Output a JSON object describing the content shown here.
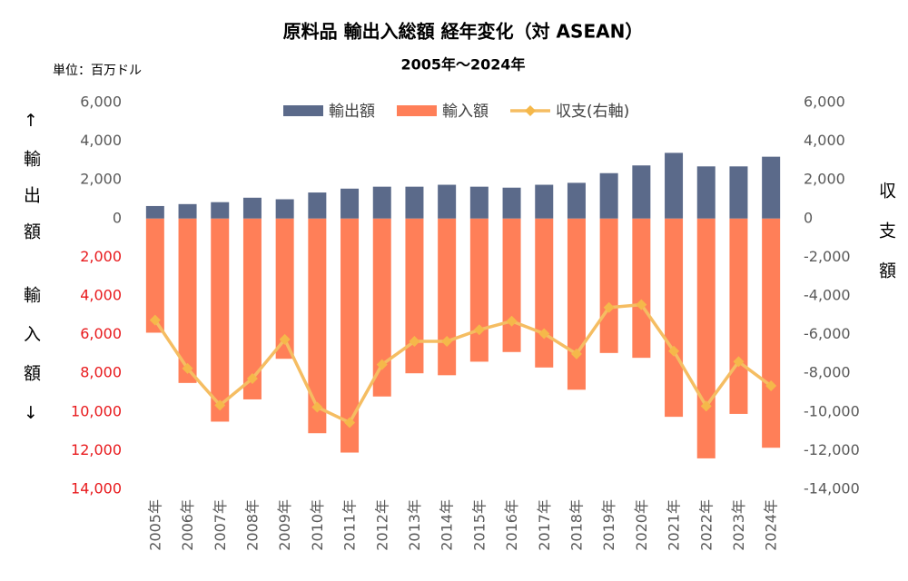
{
  "chart_data": {
    "type": "bar_line",
    "title": "原料品 輸出入総額 経年変化（対 ASEAN）",
    "subtitle": "2005年～2024年",
    "unit_label": "単位：百万ドル",
    "y_label_upper": "↑輸出額",
    "y_label_lower": "輸入額↓",
    "y2_label": "収支額",
    "categories": [
      "2005年",
      "2006年",
      "2007年",
      "2008年",
      "2009年",
      "2010年",
      "2011年",
      "2012年",
      "2013年",
      "2014年",
      "2015年",
      "2016年",
      "2017年",
      "2018年",
      "2019年",
      "2020年",
      "2021年",
      "2022年",
      "2023年",
      "2024年"
    ],
    "series": [
      {
        "name": "輸出額",
        "type": "bar",
        "color": "#5b6a8a",
        "values": [
          650,
          750,
          850,
          1080,
          1000,
          1350,
          1550,
          1650,
          1650,
          1750,
          1650,
          1600,
          1750,
          1850,
          2350,
          2750,
          3400,
          2700,
          2700,
          3200
        ]
      },
      {
        "name": "輸入額",
        "type": "bar",
        "color": "#ff7f58",
        "values": [
          -5900,
          -8500,
          -10500,
          -9350,
          -7250,
          -11100,
          -12100,
          -9200,
          -8000,
          -8100,
          -7400,
          -6900,
          -7700,
          -8850,
          -6950,
          -7200,
          -10250,
          -12400,
          -10100,
          -11850
        ]
      },
      {
        "name": "収支(右軸)",
        "type": "line",
        "axis": "y2",
        "color": "#f5bd62",
        "values": [
          -5250,
          -7750,
          -9650,
          -8270,
          -6250,
          -9750,
          -10550,
          -7550,
          -6350,
          -6350,
          -5750,
          -5300,
          -5950,
          -7000,
          -4600,
          -4450,
          -6850,
          -9700,
          -7400,
          -8650
        ]
      }
    ],
    "ylim": [
      -14000,
      6000
    ],
    "yticks": [
      {
        "value": 6000,
        "label": "6,000"
      },
      {
        "value": 4000,
        "label": "4,000"
      },
      {
        "value": 2000,
        "label": "2,000"
      },
      0,
      {
        "value": -2000,
        "label": "2,000"
      },
      {
        "value": -4000,
        "label": "4,000"
      },
      {
        "value": -6000,
        "label": "6,000"
      },
      {
        "value": -8000,
        "label": "8,000"
      },
      {
        "value": -10000,
        "label": "10,000"
      },
      {
        "value": -12000,
        "label": "12,000"
      },
      {
        "value": -14000,
        "label": "14,000"
      }
    ],
    "negative_tick_color": "#e8191c",
    "y2lim": [
      -14000,
      6000
    ],
    "y2ticks": [
      {
        "value": 6000,
        "label": "6,000"
      },
      {
        "value": 4000,
        "label": "4,000"
      },
      {
        "value": 2000,
        "label": "2,000"
      },
      0,
      {
        "value": -2000,
        "label": "-2,000"
      },
      {
        "value": -4000,
        "label": "-4,000"
      },
      {
        "value": -6000,
        "label": "-6,000"
      },
      {
        "value": -8000,
        "label": "-8,000"
      },
      {
        "value": -10000,
        "label": "-10,000"
      },
      {
        "value": -12000,
        "label": "-12,000"
      },
      {
        "value": -14000,
        "label": "-14,000"
      }
    ],
    "legend": "top"
  }
}
